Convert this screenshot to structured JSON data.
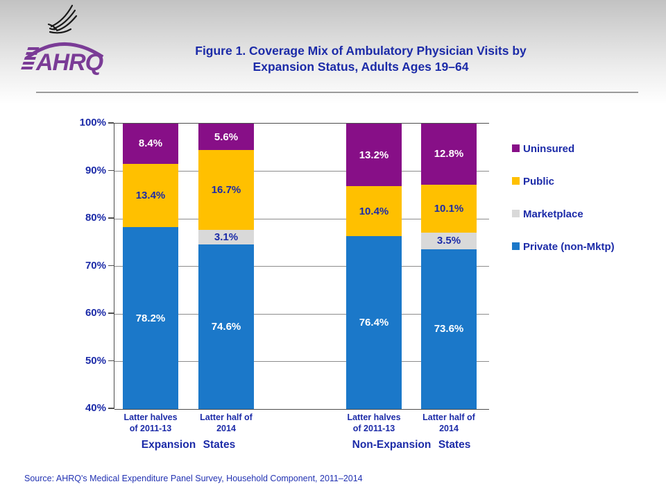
{
  "slide": {
    "title_line1": "Figure 1. Coverage Mix of Ambulatory Physician Visits by",
    "title_line2": "Expansion Status, Adults Ages 19–64",
    "source": "Source: AHRQ's Medical Expenditure Panel Survey, Household Component, 2011–2014"
  },
  "logo": {
    "wordmark": "AHRQ",
    "eagle_icon": "hhs-eagle-icon",
    "color": "#7a3b96"
  },
  "colors": {
    "text_blue": "#1c2ba8",
    "axis": "#4d4d4d",
    "gridline": "#8c8c8c"
  },
  "chart_data": {
    "type": "bar",
    "subtype": "stacked-percent-column",
    "title": "Figure 1. Coverage Mix of Ambulatory Physician Visits by Expansion Status, Adults Ages 19–64",
    "ylim": [
      40,
      100
    ],
    "yticks": [
      100,
      90,
      80,
      70,
      60,
      50,
      40
    ],
    "ytick_suffix": "%",
    "grid": true,
    "legend_position": "right",
    "series_order_bottom_to_top": [
      "Private (non-Mktp)",
      "Marketplace",
      "Public",
      "Uninsured"
    ],
    "series_styles": {
      "Private (non-Mktp)": {
        "color": "#1b78c9",
        "label_color": "#ffffff"
      },
      "Marketplace": {
        "color": "#d9d9d9",
        "label_color": "#1c2ba8"
      },
      "Public": {
        "color": "#ffc000",
        "label_color": "#1c2ba8"
      },
      "Uninsured": {
        "color": "#870f87",
        "label_color": "#ffffff"
      }
    },
    "legend": [
      "Uninsured",
      "Public",
      "Marketplace",
      "Private (non-Mktp)"
    ],
    "groups": [
      {
        "label": "Expansion States",
        "bars": [
          {
            "tick_label": [
              "Latter halves",
              "of 2011-13"
            ],
            "values": {
              "Private (non-Mktp)": 78.2,
              "Marketplace": 0,
              "Public": 13.4,
              "Uninsured": 8.4
            }
          },
          {
            "tick_label": [
              "Latter half of",
              "2014"
            ],
            "values": {
              "Private (non-Mktp)": 74.6,
              "Marketplace": 3.1,
              "Public": 16.7,
              "Uninsured": 5.6
            }
          }
        ]
      },
      {
        "label": "Non-Expansion States",
        "bars": [
          {
            "tick_label": [
              "Latter halves",
              "of 2011-13"
            ],
            "values": {
              "Private (non-Mktp)": 76.4,
              "Marketplace": 0,
              "Public": 10.4,
              "Uninsured": 13.2
            }
          },
          {
            "tick_label": [
              "Latter half of",
              "2014"
            ],
            "values": {
              "Private (non-Mktp)": 73.6,
              "Marketplace": 3.5,
              "Public": 10.1,
              "Uninsured": 12.8
            }
          }
        ]
      }
    ]
  }
}
